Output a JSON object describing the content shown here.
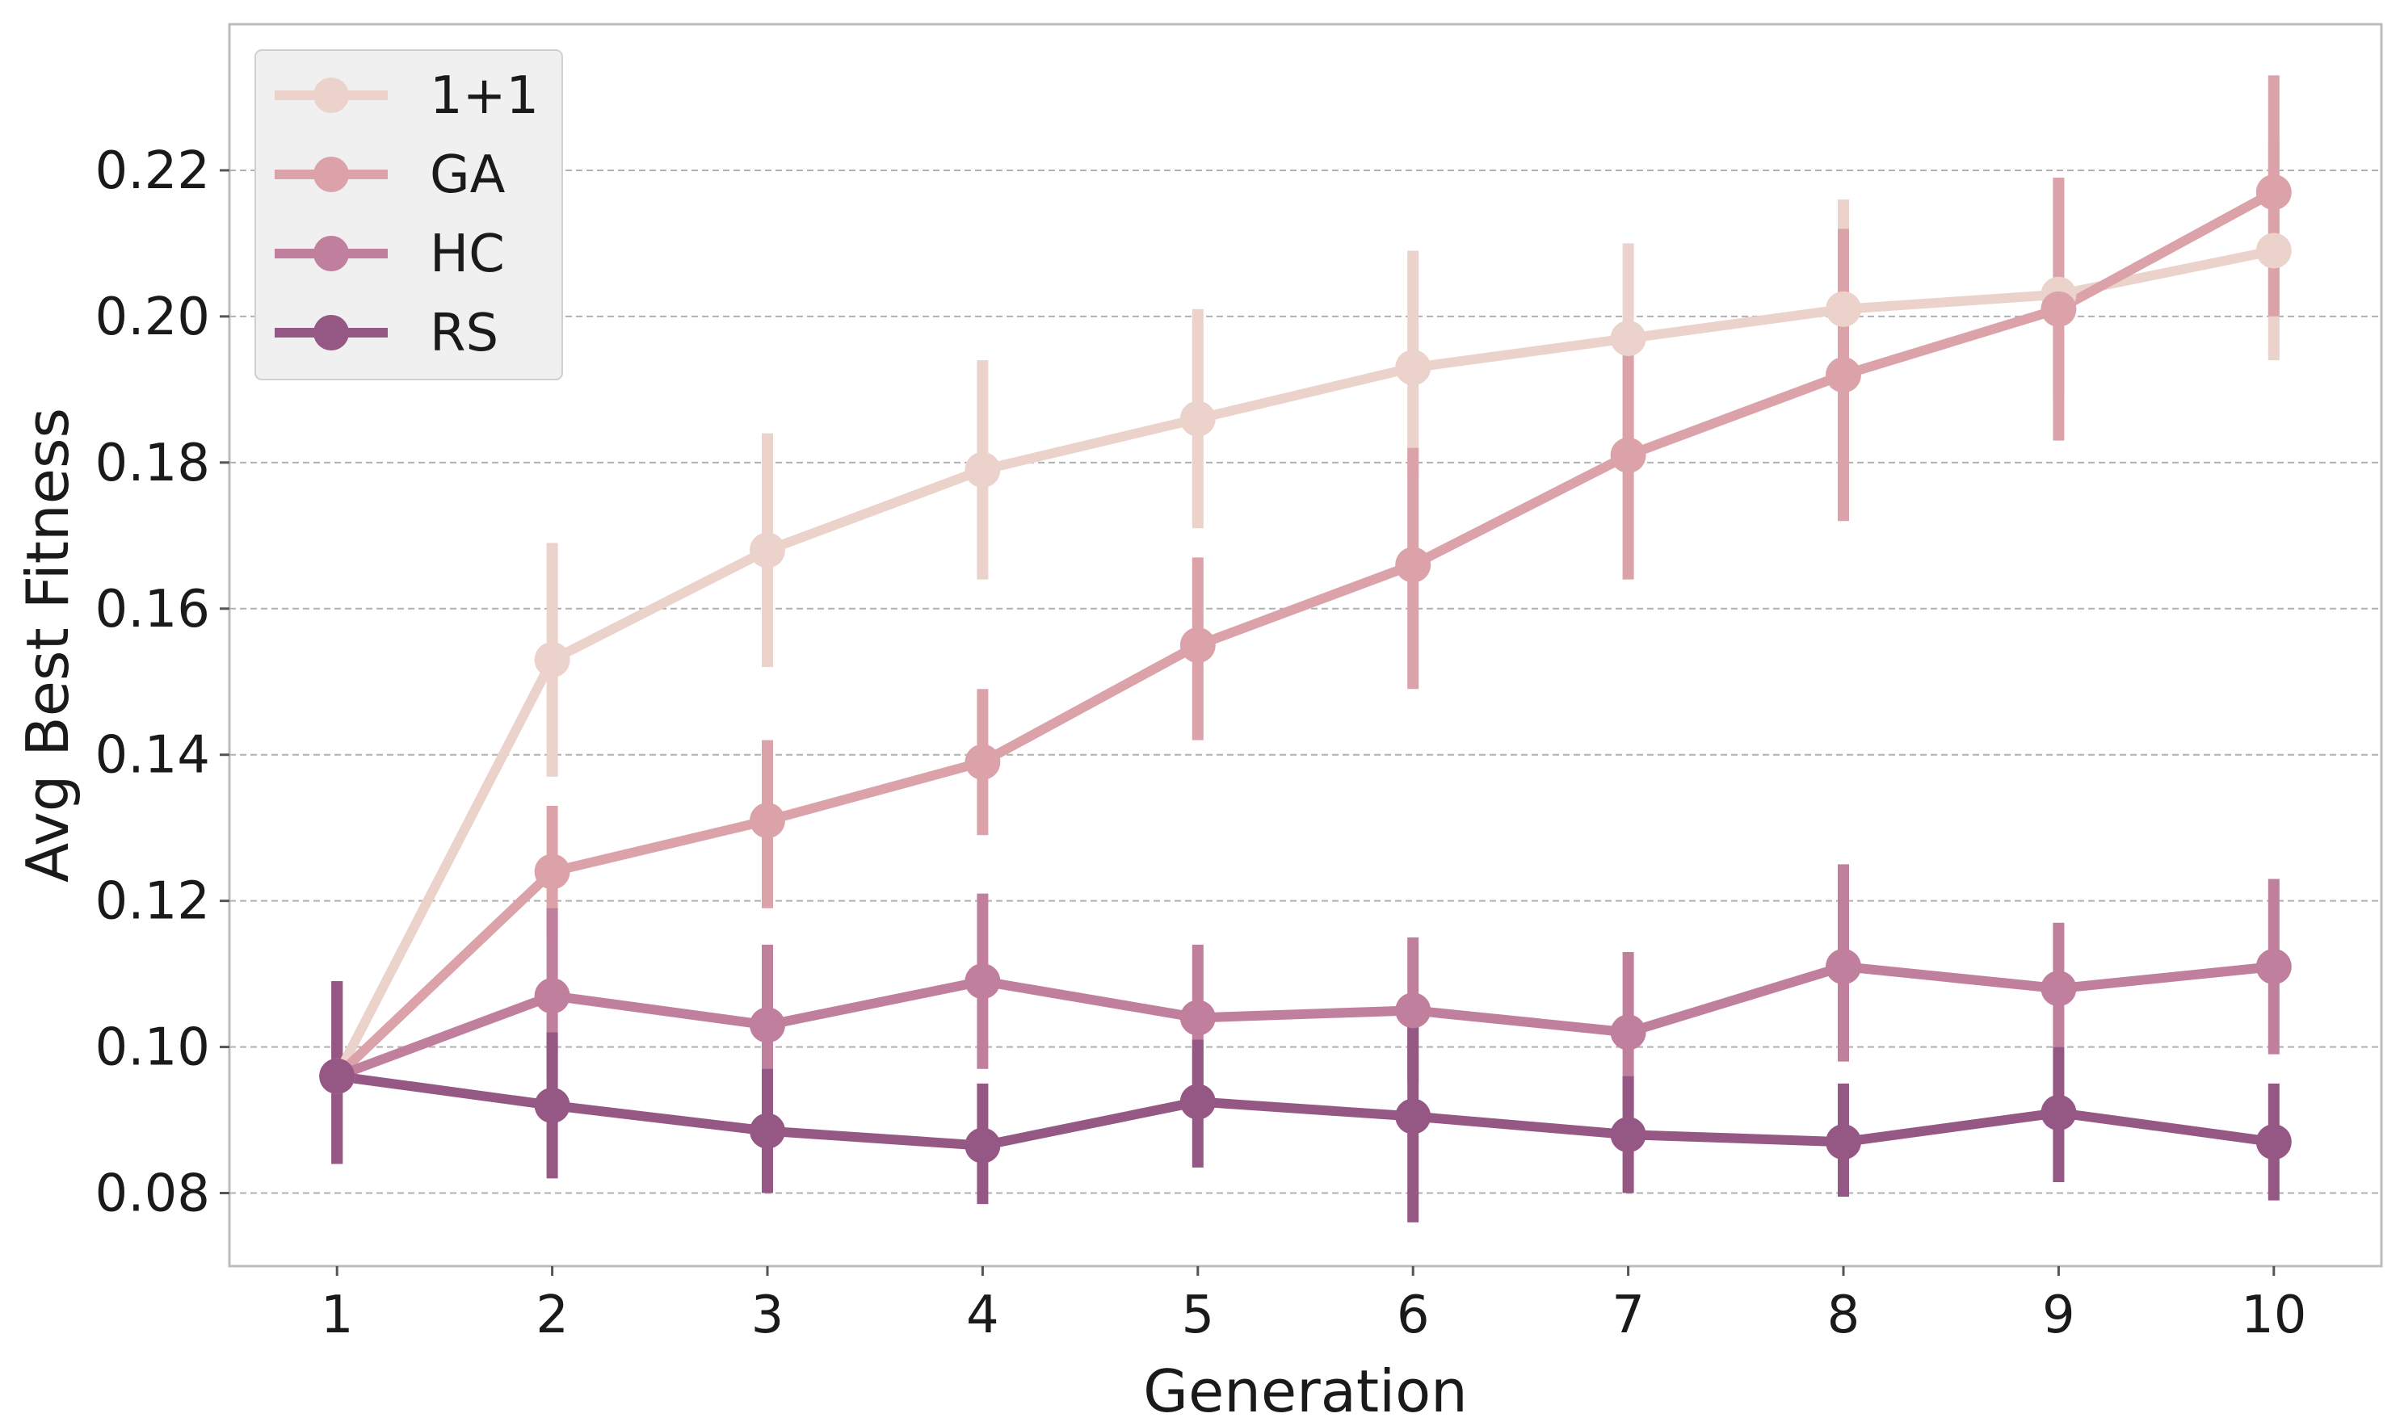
{
  "chart_data": {
    "type": "line",
    "xlabel": "Generation",
    "ylabel": "Avg Best Fitness",
    "x": [
      1,
      2,
      3,
      4,
      5,
      6,
      7,
      8,
      9,
      10
    ],
    "xticks": [
      "1",
      "2",
      "3",
      "4",
      "5",
      "6",
      "7",
      "8",
      "9",
      "10"
    ],
    "ylim": [
      0.07,
      0.24
    ],
    "yticks": [
      0.08,
      0.1,
      0.12,
      0.14,
      0.16,
      0.18,
      0.2,
      0.22
    ],
    "ytick_labels": [
      "0.08",
      "0.10",
      "0.12",
      "0.14",
      "0.16",
      "0.18",
      "0.20",
      "0.22"
    ],
    "grid": "horizontal dashed",
    "legend_position": "top-left",
    "series": [
      {
        "name": "1+1",
        "color": "#ebd2cb",
        "values": [
          0.096,
          0.153,
          0.168,
          0.179,
          0.186,
          0.193,
          0.197,
          0.201,
          0.203,
          0.209
        ],
        "err_low": [
          0.084,
          0.137,
          0.152,
          0.164,
          0.171,
          0.178,
          0.183,
          0.187,
          0.189,
          0.194
        ],
        "err_high": [
          0.109,
          0.169,
          0.184,
          0.194,
          0.201,
          0.209,
          0.21,
          0.216,
          0.219,
          0.224
        ]
      },
      {
        "name": "GA",
        "color": "#dba3a9",
        "values": [
          0.096,
          0.124,
          0.131,
          0.139,
          0.155,
          0.166,
          0.181,
          0.192,
          0.201,
          0.217
        ],
        "err_low": [
          0.084,
          0.115,
          0.119,
          0.129,
          0.142,
          0.149,
          0.164,
          0.172,
          0.183,
          0.2
        ],
        "err_high": [
          0.109,
          0.133,
          0.142,
          0.149,
          0.167,
          0.182,
          0.196,
          0.212,
          0.219,
          0.233
        ]
      },
      {
        "name": "HC",
        "color": "#c07f9c",
        "values": [
          0.096,
          0.107,
          0.103,
          0.109,
          0.104,
          0.105,
          0.102,
          0.111,
          0.108,
          0.111
        ],
        "err_low": [
          0.084,
          0.096,
          0.093,
          0.097,
          0.094,
          0.095,
          0.091,
          0.098,
          0.1,
          0.099
        ],
        "err_high": [
          0.109,
          0.119,
          0.114,
          0.121,
          0.114,
          0.115,
          0.113,
          0.125,
          0.117,
          0.123
        ]
      },
      {
        "name": "RS",
        "color": "#955784",
        "values": [
          0.096,
          0.092,
          0.0885,
          0.0865,
          0.0925,
          0.0905,
          0.088,
          0.087,
          0.091,
          0.087
        ],
        "err_low": [
          0.084,
          0.082,
          0.08,
          0.0785,
          0.0835,
          0.076,
          0.08,
          0.0795,
          0.0815,
          0.079
        ],
        "err_high": [
          0.109,
          0.102,
          0.097,
          0.095,
          0.101,
          0.105,
          0.096,
          0.095,
          0.1,
          0.095
        ]
      }
    ]
  }
}
